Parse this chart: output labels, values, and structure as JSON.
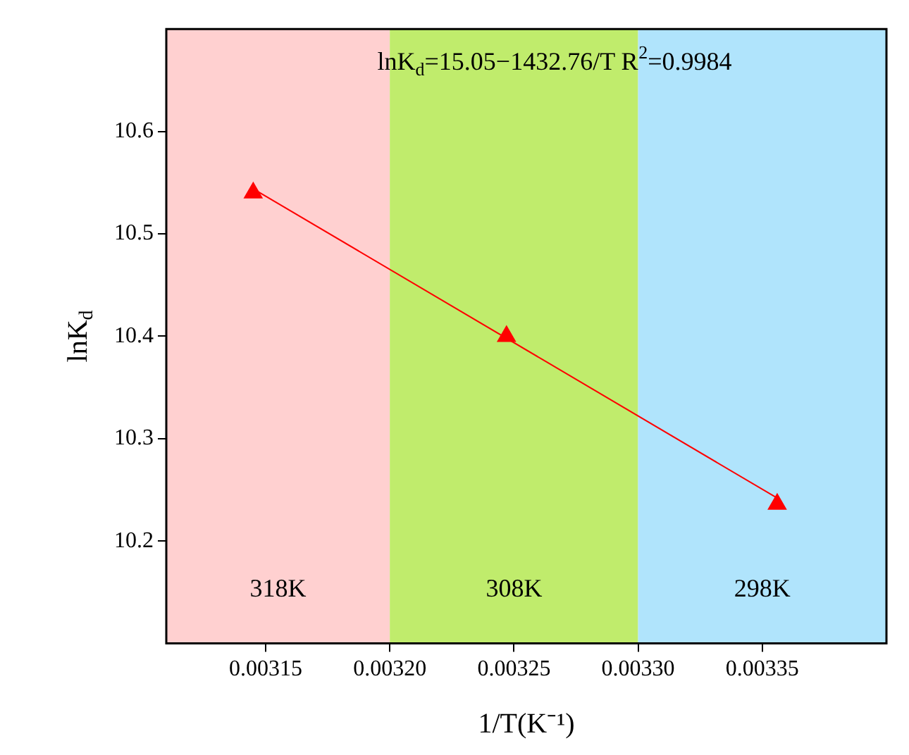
{
  "chart_data": {
    "type": "scatter",
    "xlabel": "1/T(K⁻¹)",
    "ylabel": "lnK$_{d}$",
    "annotations": [
      "lnK$_{d}$=15.05−1432.76/T R$^{2}$=0.9984"
    ],
    "series": [
      {
        "type": "scatter",
        "color": "#ff0000",
        "x": [
          0.003145,
          0.003247,
          0.003356
        ],
        "values": [
          10.54,
          10.4,
          10.236
        ],
        "marker": "triangle"
      },
      {
        "type": "line",
        "color": "#ff0000",
        "x": [
          0.003145,
          0.003356
        ],
        "values": [
          10.544,
          10.242
        ],
        "marker": "none"
      }
    ],
    "bands": [
      {
        "axis": "x",
        "from": 0.00311,
        "to": 0.0032,
        "label": "318K",
        "color": "#ffd0d0"
      },
      {
        "axis": "x",
        "from": 0.0032,
        "to": 0.0033,
        "label": "308K",
        "color": "#c0ec6c"
      },
      {
        "axis": "x",
        "from": 0.0033,
        "to": 0.0034,
        "label": "298K",
        "color": "#b0e4fc"
      }
    ],
    "xlim": [
      0.00311,
      0.0034
    ],
    "xticks": [
      {
        "value": 0.00315,
        "label": "0.00315"
      },
      {
        "value": 0.0032,
        "label": "0.00320"
      },
      {
        "value": 0.00325,
        "label": "0.00325"
      },
      {
        "value": 0.0033,
        "label": "0.00330"
      },
      {
        "value": 0.00335,
        "label": "0.00335"
      }
    ],
    "ylim": [
      10.1,
      10.7
    ],
    "yticks": [
      10.2,
      10.3,
      10.4,
      10.5,
      10.6
    ],
    "grid": false,
    "legend": false
  }
}
